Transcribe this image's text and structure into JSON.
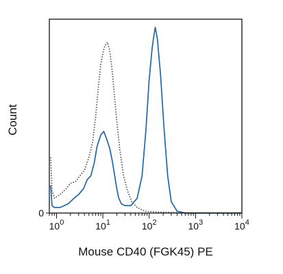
{
  "chart_data": {
    "type": "line",
    "title": "",
    "xlabel": "Mouse CD40 (FGK45) PE",
    "ylabel": "Count",
    "x_scale": "log",
    "x_range": [
      0.7,
      10000
    ],
    "y_range": [
      0,
      100
    ],
    "grid": false,
    "x_ticks": [
      {
        "base": "10",
        "exp": "0",
        "value": 1
      },
      {
        "base": "10",
        "exp": "1",
        "value": 10
      },
      {
        "base": "10",
        "exp": "2",
        "value": 100
      },
      {
        "base": "10",
        "exp": "3",
        "value": 1000
      },
      {
        "base": "10",
        "exp": "4",
        "value": 10000
      }
    ],
    "y_ticks": [
      {
        "label": "0",
        "value": 0
      }
    ],
    "series": [
      {
        "style": "dotted",
        "color": "#555555",
        "points": [
          [
            0.75,
            30
          ],
          [
            0.8,
            12
          ],
          [
            0.9,
            8
          ],
          [
            1.2,
            10
          ],
          [
            1.6,
            13
          ],
          [
            2.0,
            16
          ],
          [
            2.6,
            17
          ],
          [
            3.2,
            20
          ],
          [
            4.0,
            23
          ],
          [
            5.0,
            30
          ],
          [
            6.0,
            38
          ],
          [
            7.0,
            52
          ],
          [
            8.0,
            68
          ],
          [
            9.0,
            80
          ],
          [
            10.0,
            86
          ],
          [
            11.0,
            90
          ],
          [
            12.5,
            92
          ],
          [
            14.0,
            88
          ],
          [
            16.0,
            76
          ],
          [
            19.0,
            55
          ],
          [
            23.0,
            35
          ],
          [
            28.0,
            20
          ],
          [
            34.0,
            12
          ],
          [
            42.0,
            6
          ],
          [
            55.0,
            3
          ],
          [
            80.0,
            1
          ],
          [
            150.0,
            0.5
          ],
          [
            1000.0,
            0
          ],
          [
            10000.0,
            0
          ]
        ]
      },
      {
        "style": "solid",
        "color": "#2066a8",
        "points": [
          [
            0.75,
            15
          ],
          [
            0.8,
            4
          ],
          [
            0.9,
            3
          ],
          [
            1.2,
            3
          ],
          [
            1.8,
            5
          ],
          [
            2.4,
            8
          ],
          [
            3.0,
            10
          ],
          [
            3.8,
            13
          ],
          [
            4.6,
            18
          ],
          [
            5.5,
            20
          ],
          [
            6.5,
            27
          ],
          [
            7.5,
            36
          ],
          [
            9.0,
            42
          ],
          [
            10.5,
            44
          ],
          [
            12.0,
            40
          ],
          [
            14.0,
            35
          ],
          [
            16.0,
            28
          ],
          [
            18.0,
            20
          ],
          [
            20.0,
            13
          ],
          [
            22.0,
            8
          ],
          [
            25.0,
            5
          ],
          [
            30.0,
            4
          ],
          [
            40.0,
            4
          ],
          [
            55.0,
            8
          ],
          [
            70.0,
            20
          ],
          [
            85.0,
            45
          ],
          [
            100.0,
            72
          ],
          [
            115.0,
            88
          ],
          [
            125.0,
            95
          ],
          [
            135.0,
            100
          ],
          [
            150.0,
            94
          ],
          [
            175.0,
            75
          ],
          [
            210.0,
            45
          ],
          [
            250.0,
            20
          ],
          [
            300.0,
            6
          ],
          [
            400.0,
            1
          ],
          [
            600.0,
            0
          ],
          [
            10000.0,
            0
          ]
        ]
      }
    ]
  }
}
